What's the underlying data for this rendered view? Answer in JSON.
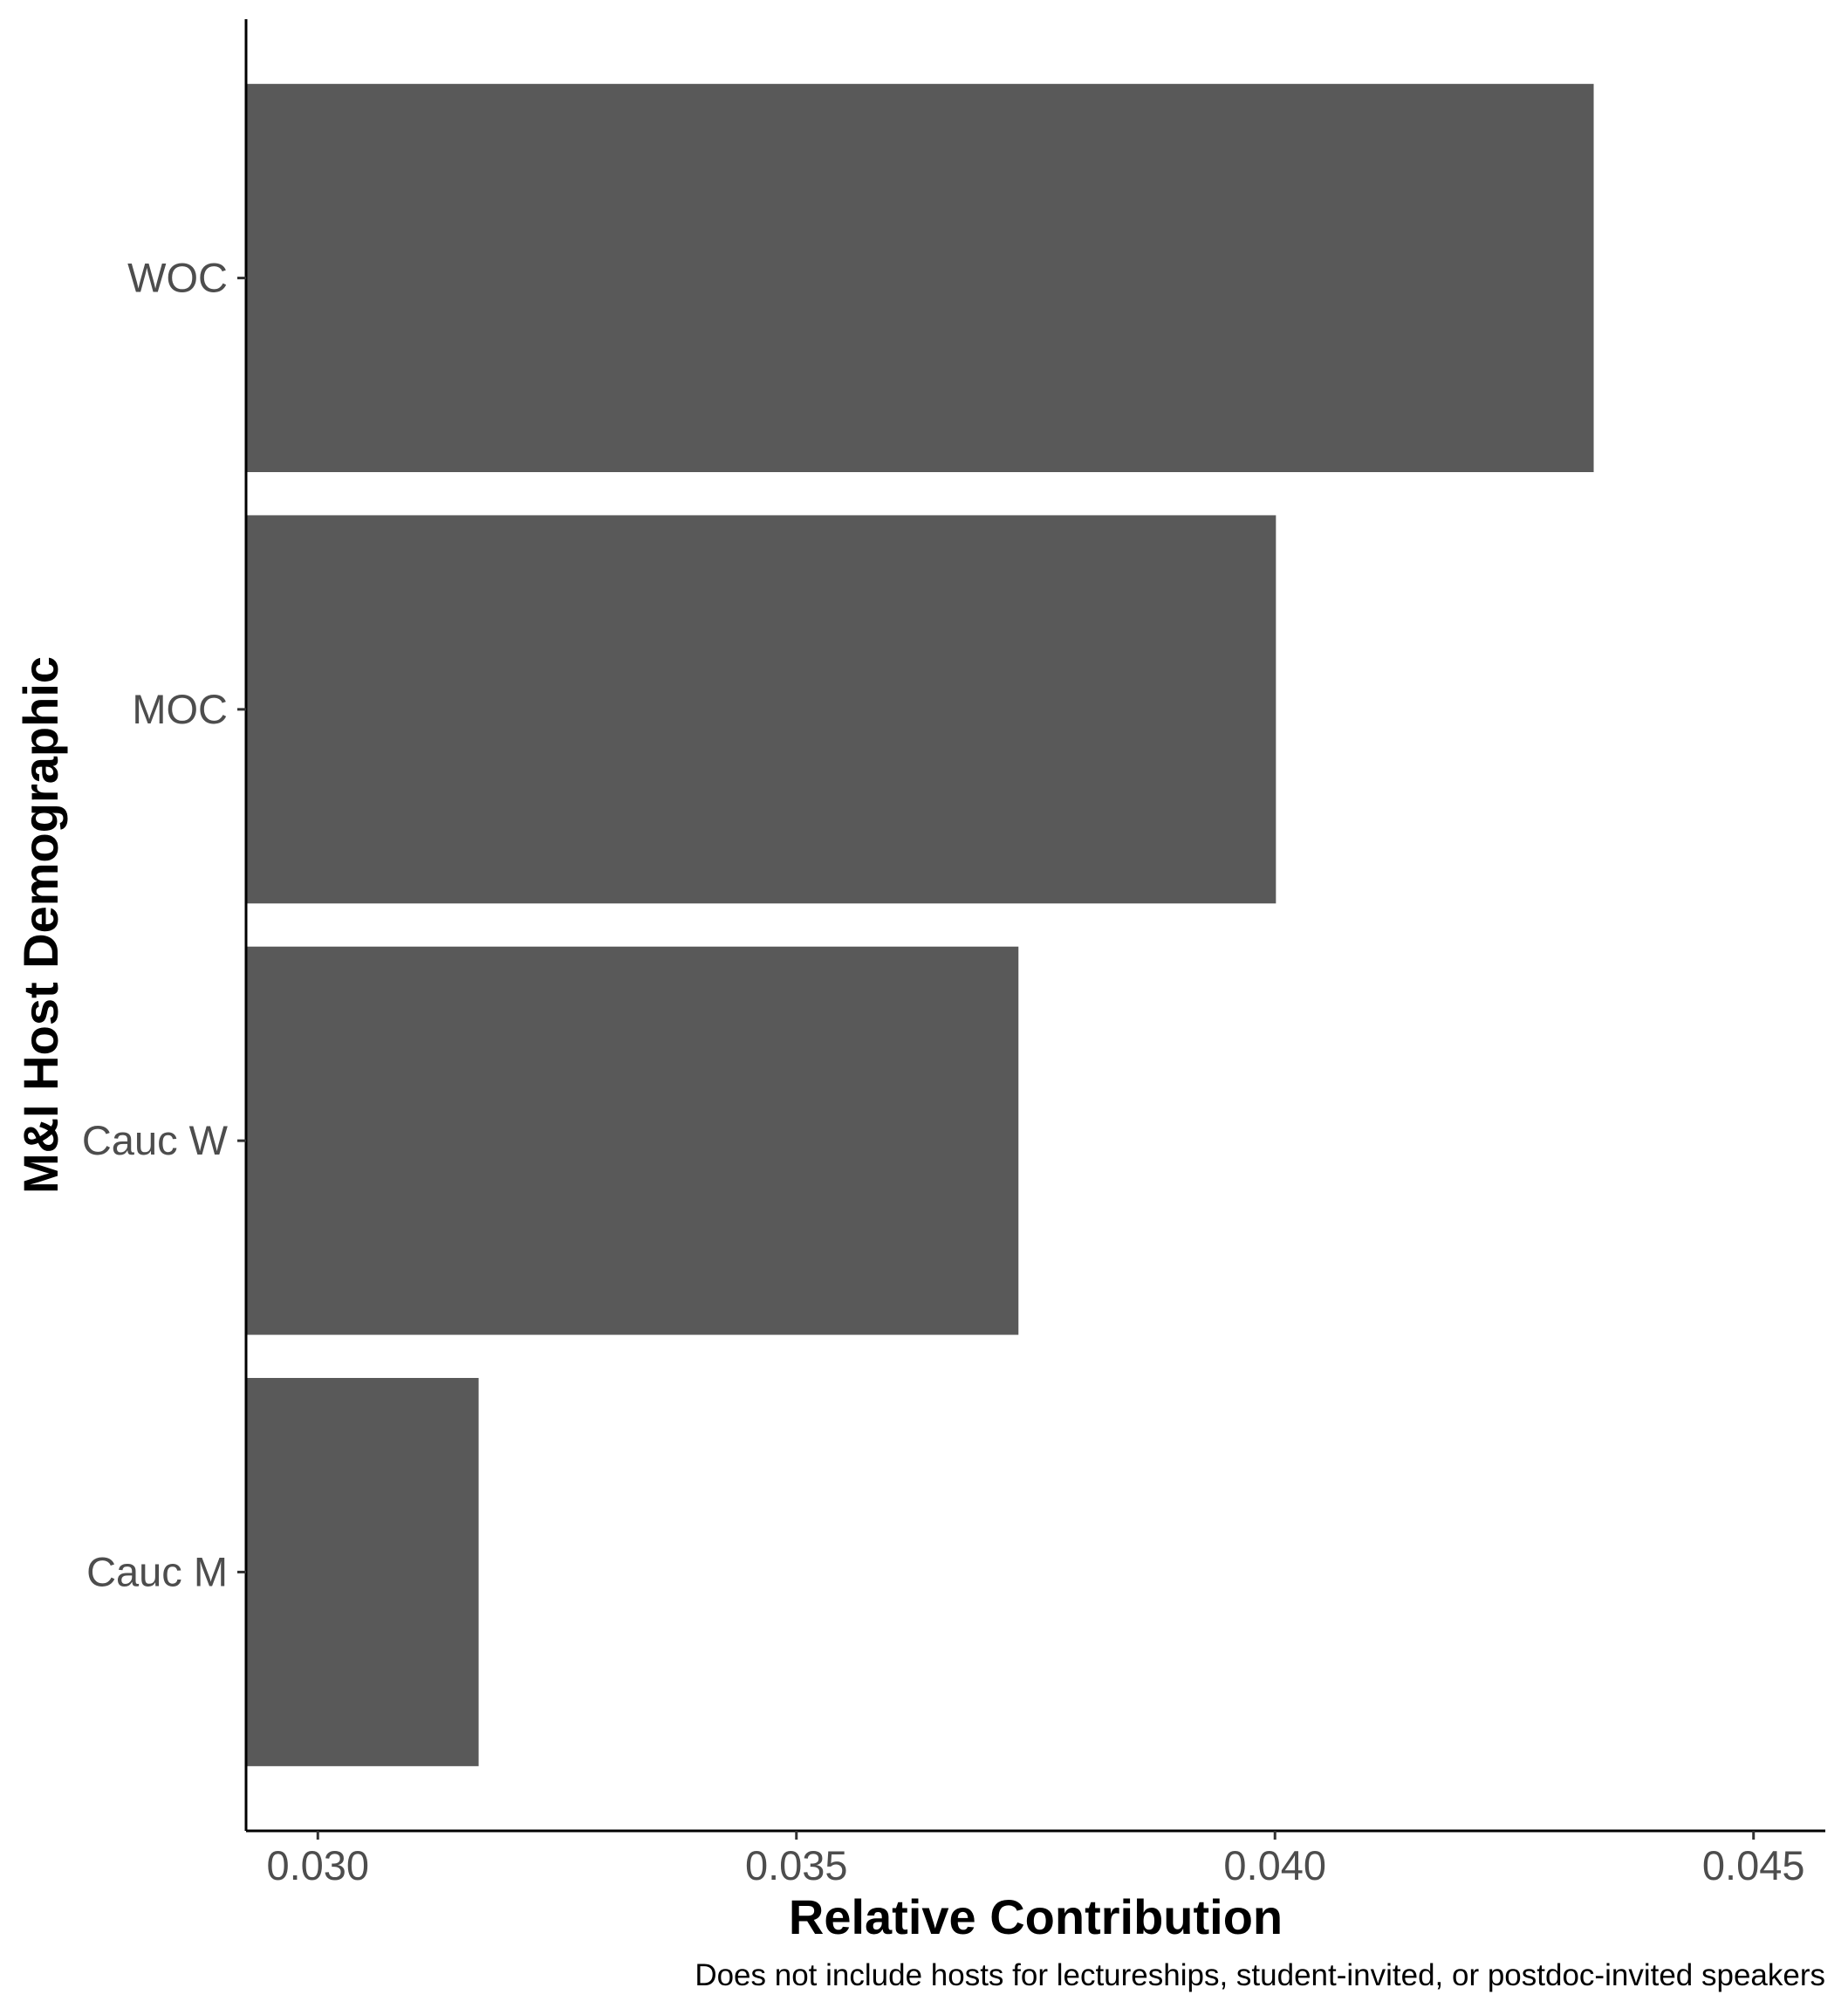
{
  "chart_data": {
    "type": "bar",
    "orientation": "horizontal",
    "categories": [
      "Cauc M",
      "Cauc W",
      "MOC",
      "WOC"
    ],
    "values": [
      0.03168,
      0.03732,
      0.04001,
      0.04333
    ],
    "xlabel": "Relative Contribution",
    "ylabel": "M&I Host Demographic",
    "caption": "Does not include hosts for lectureships, student-invited, or postdoc-invited speakers",
    "xlim": [
      0.02925,
      0.04575
    ],
    "xticks": [
      "0.030",
      "0.035",
      "0.040",
      "0.045"
    ],
    "xtick_values": [
      0.03,
      0.035,
      0.04,
      0.045
    ],
    "bar_color": "#595959",
    "grid": false,
    "legend": "none"
  }
}
